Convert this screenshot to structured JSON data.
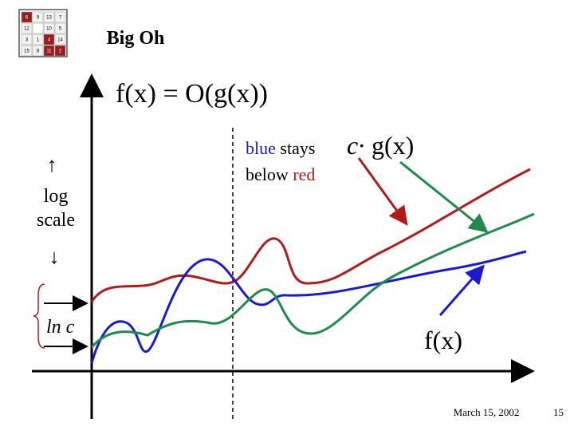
{
  "logo": {
    "rows": [
      [
        "6",
        "9",
        "13",
        "7"
      ],
      [
        "12",
        null,
        "10",
        "5"
      ],
      [
        "3",
        "1",
        "4",
        "14"
      ],
      [
        "15",
        "8",
        "11",
        "2"
      ]
    ]
  },
  "header": {
    "title": "Big Oh"
  },
  "slide": {
    "heading": "f(x) = O(g(x))",
    "axis_note": {
      "up": "↑",
      "line1": "log",
      "line2": "scale",
      "down": "↓"
    },
    "offset_label": "ln c",
    "note": {
      "blue": "blue",
      "stays": "stays",
      "below": "below",
      "red": "red"
    },
    "g_label": {
      "c": "c·",
      "g": "g(x)"
    },
    "f_label": "f(x)"
  },
  "footer": {
    "date": "March 15, 2002",
    "page": "15"
  }
}
